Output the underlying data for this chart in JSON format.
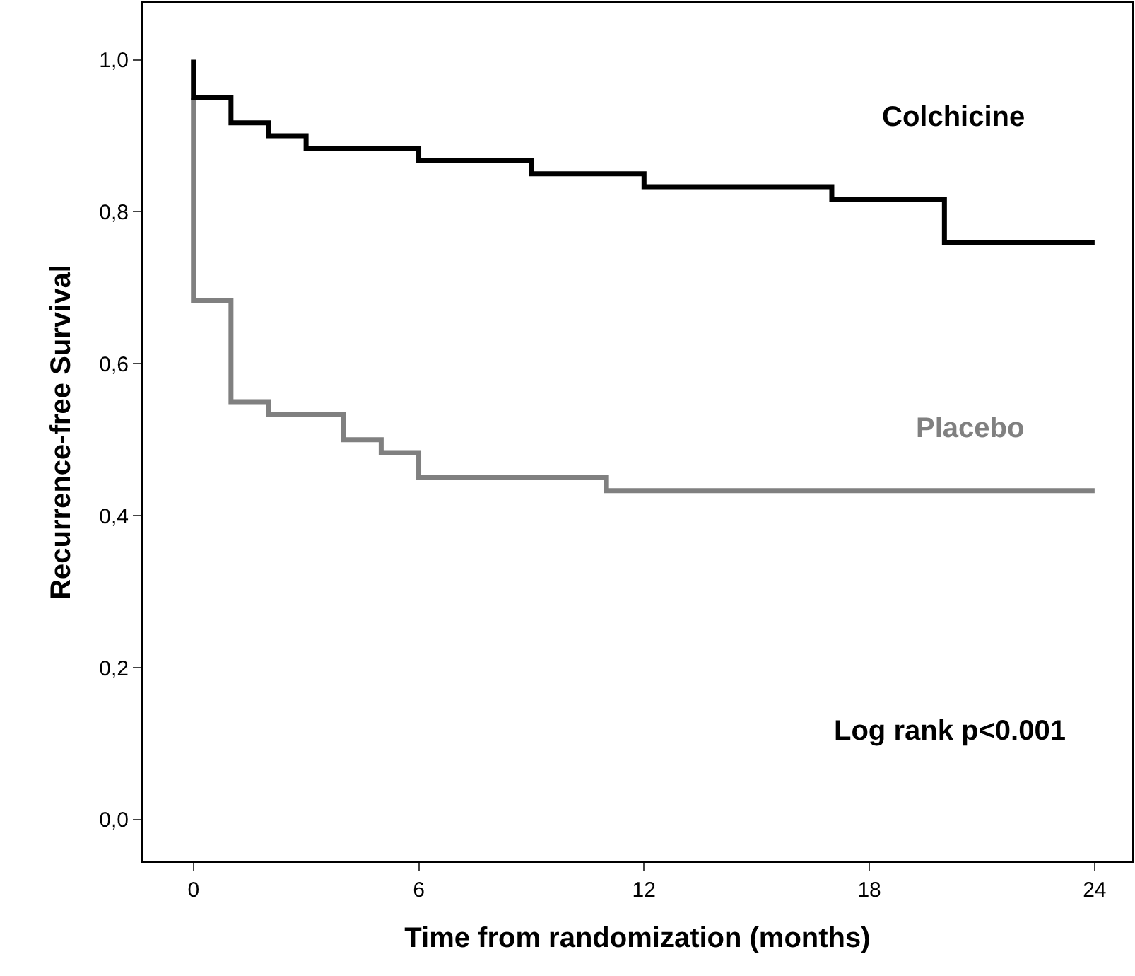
{
  "chart_data": {
    "type": "step",
    "xlabel": "Time from randomization (months)",
    "ylabel": "Recurrence-free Survival",
    "xlim": [
      -1.35,
      25
    ],
    "ylim": [
      -0.055,
      1.075
    ],
    "xticks": [
      0,
      6,
      12,
      18,
      24
    ],
    "yticks": [
      {
        "value": 0,
        "label": "0,0"
      },
      {
        "value": 0.2,
        "label": "0,2"
      },
      {
        "value": 0.4,
        "label": "0,4"
      },
      {
        "value": 0.6,
        "label": "0,6"
      },
      {
        "value": 0.8,
        "label": "0,8"
      },
      {
        "value": 1,
        "label": "1,0"
      }
    ],
    "grid": false,
    "legend": false,
    "marker": "none",
    "line_style": "solid",
    "series": [
      {
        "name": "Placebo",
        "color": "#808080",
        "x": [
          0,
          0,
          1,
          2,
          4,
          5,
          6,
          11,
          24
        ],
        "values": [
          0.95,
          0.683,
          0.55,
          0.533,
          0.5,
          0.483,
          0.45,
          0.433,
          0.433
        ]
      },
      {
        "name": "Colchicine",
        "color": "#000000",
        "x": [
          0,
          0,
          1,
          2,
          3,
          6,
          9,
          12,
          17,
          20,
          24
        ],
        "values": [
          1,
          0.95,
          0.917,
          0.9,
          0.883,
          0.867,
          0.85,
          0.833,
          0.816,
          0.76,
          0.76
        ]
      }
    ],
    "annotations": [
      "Log rank p<0.001"
    ]
  }
}
